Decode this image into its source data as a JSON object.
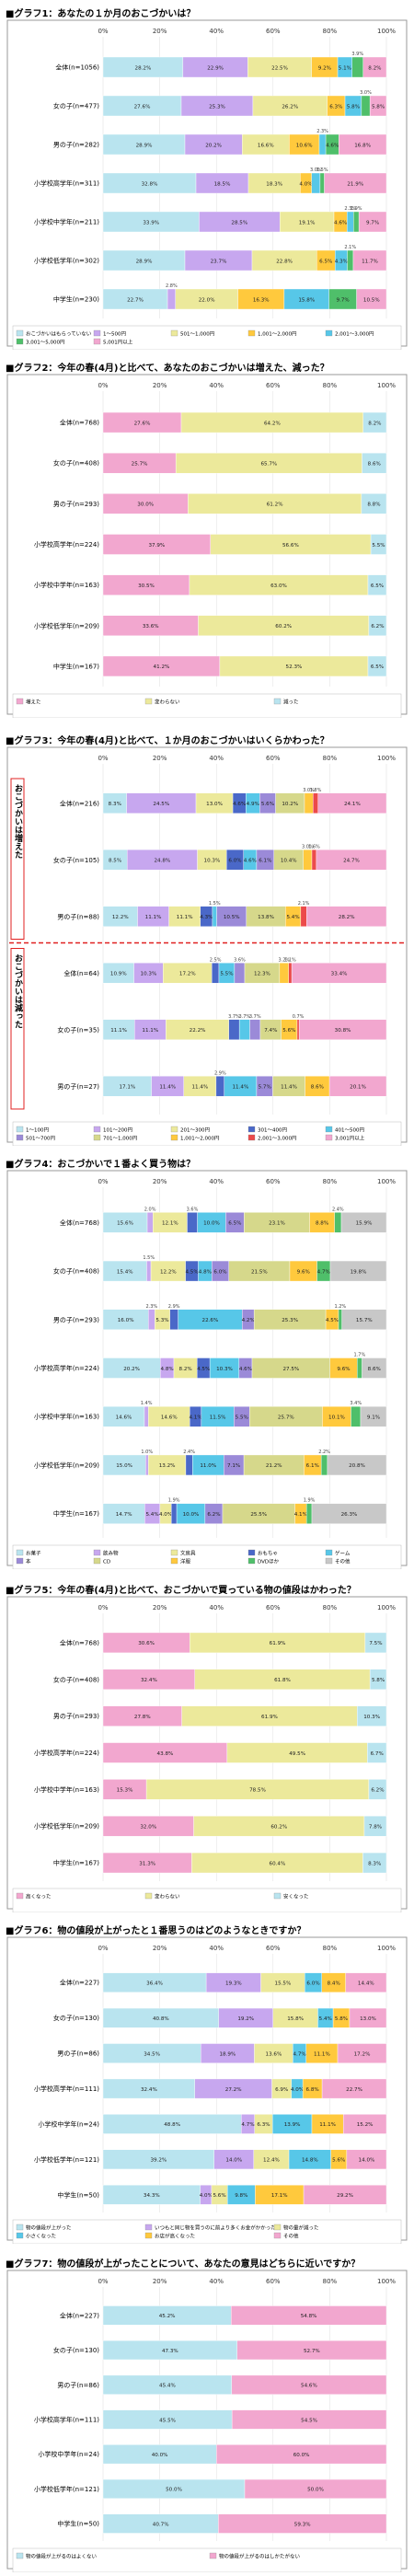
{
  "chart_data": [
    {
      "type": "bar",
      "stacked": "percent",
      "title": "■グラフ1：あなたの１か月のおこづかいは？",
      "categories": [
        "全体(n=1056)",
        "女の子(n=477)",
        "男の子(n=282)",
        "小学校高学年(n=311)",
        "小学校中学年(n=211)",
        "小学校低学年(n=302)",
        "中学生(n=230)"
      ],
      "axis_ticks": [
        "0%",
        "20%",
        "40%",
        "60%",
        "80%",
        "100%"
      ],
      "series": [
        {
          "name": "おこづかいはもらっていない",
          "color": "#b9e4ef",
          "values": [
            28.2,
            27.6,
            28.9,
            32.8,
            33.9,
            28.9,
            22.7
          ]
        },
        {
          "name": "1〜500円",
          "color": "#c7a7ef",
          "values": [
            22.9,
            25.3,
            20.2,
            18.5,
            28.5,
            23.7,
            2.8
          ]
        },
        {
          "name": "501〜1,000円",
          "color": "#ece99b",
          "values": [
            22.5,
            26.2,
            16.6,
            18.3,
            19.1,
            22.8,
            22.0
          ]
        },
        {
          "name": "1,001〜2,000円",
          "color": "#ffc93d",
          "values": [
            9.2,
            6.3,
            10.6,
            4.0,
            4.6,
            6.5,
            16.3
          ]
        },
        {
          "name": "2,001〜3,000円",
          "color": "#57c7e8",
          "values": [
            5.1,
            5.8,
            2.3,
            3.0,
            2.3,
            4.3,
            15.8
          ]
        },
        {
          "name": "3,001〜5,000円",
          "color": "#4fbf6a",
          "values": [
            3.9,
            3.0,
            4.6,
            1.5,
            1.9,
            2.1,
            9.7
          ]
        },
        {
          "name": "5,001円以上",
          "color": "#f2a7cf",
          "values": [
            8.2,
            5.8,
            16.8,
            21.9,
            9.7,
            11.7,
            10.5
          ]
        }
      ]
    },
    {
      "type": "bar",
      "stacked": "percent",
      "title": "■グラフ2：今年の春(4月)と比べて、あなたのおこづかいは増えた、減った？",
      "categories": [
        "全体(n=768)",
        "女の子(n=408)",
        "男の子(n=293)",
        "小学校高学年(n=224)",
        "小学校中学年(n=163)",
        "小学校低学年(n=209)",
        "中学生(n=167)"
      ],
      "axis_ticks": [
        "0%",
        "20%",
        "40%",
        "60%",
        "80%",
        "100%"
      ],
      "series": [
        {
          "name": "増えた",
          "color": "#f2a7cf",
          "values": [
            27.6,
            25.7,
            30.0,
            37.9,
            30.5,
            33.6,
            41.2
          ]
        },
        {
          "name": "変わらない",
          "color": "#ece99b",
          "values": [
            64.2,
            65.7,
            61.2,
            56.6,
            63.0,
            60.2,
            52.3
          ]
        },
        {
          "name": "減った",
          "color": "#b9e4ef",
          "values": [
            8.2,
            8.6,
            8.8,
            5.5,
            6.5,
            6.2,
            6.5
          ]
        }
      ]
    },
    {
      "type": "bar",
      "stacked": "percent",
      "title": "■グラフ3：今年の春(4月)と比べて、１か月のおこづかいはいくらかわった？",
      "categories": [
        "全体(n=216)",
        "女の子(n=105)",
        "男の子(n=88)",
        "全体(n=64)",
        "女の子(n=35)",
        "男の子(n=27)"
      ],
      "group_labels": [
        "おこづかいは増えた",
        "おこづかいは減った"
      ],
      "axis_ticks": [
        "0%",
        "20%",
        "40%",
        "60%",
        "80%",
        "100%"
      ],
      "series": [
        {
          "name": "1〜100円",
          "color": "#b9e4ef",
          "values": [
            8.3,
            8.5,
            12.2,
            10.9,
            11.1,
            17.1
          ]
        },
        {
          "name": "101〜200円",
          "color": "#c7a7ef",
          "values": [
            24.5,
            24.8,
            11.1,
            10.3,
            11.1,
            11.4
          ]
        },
        {
          "name": "201〜300円",
          "color": "#ece99b",
          "values": [
            13.0,
            10.3,
            11.1,
            17.2,
            22.2,
            11.4
          ]
        },
        {
          "name": "301〜400円",
          "color": "#4a68c8",
          "values": [
            4.6,
            6.0,
            4.3,
            2.5,
            3.7,
            2.9
          ]
        },
        {
          "name": "401〜500円",
          "color": "#57c7e8",
          "values": [
            4.9,
            4.6,
            1.5,
            5.5,
            3.7,
            11.4
          ]
        },
        {
          "name": "501〜700円",
          "color": "#9b8ad8",
          "values": [
            5.6,
            6.1,
            10.5,
            3.6,
            3.7,
            5.7
          ]
        },
        {
          "name": "701〜1,000円",
          "color": "#d6d88b",
          "values": [
            10.2,
            10.4,
            13.8,
            12.3,
            7.4,
            11.4
          ]
        },
        {
          "name": "1,001〜2,000円",
          "color": "#ffc93d",
          "values": [
            3.0,
            3.0,
            5.4,
            3.2,
            5.6,
            8.6
          ]
        },
        {
          "name": "2,001〜3,000円",
          "color": "#ec4a4a",
          "values": [
            1.8,
            1.6,
            2.1,
            1.1,
            0.7,
            0.0
          ]
        },
        {
          "name": "3,001円以上",
          "color": "#f2a7cf",
          "values": [
            24.1,
            24.7,
            28.2,
            33.4,
            30.8,
            20.1
          ]
        }
      ]
    },
    {
      "type": "bar",
      "stacked": "percent",
      "title": "■グラフ4：おこづかいで１番よく買う物は？",
      "categories": [
        "全体(n=768)",
        "女の子(n=408)",
        "男の子(n=293)",
        "小学校高学年(n=224)",
        "小学校中学年(n=163)",
        "小学校低学年(n=209)",
        "中学生(n=167)"
      ],
      "axis_ticks": [
        "0%",
        "20%",
        "40%",
        "60%",
        "80%",
        "100%"
      ],
      "series": [
        {
          "name": "お菓子",
          "color": "#b9e4ef",
          "values": [
            15.6,
            15.4,
            16.0,
            20.2,
            14.6,
            15.0,
            14.7
          ]
        },
        {
          "name": "飲み物",
          "color": "#c7a7ef",
          "values": [
            2.0,
            1.5,
            2.3,
            4.8,
            1.4,
            1.0,
            5.4
          ]
        },
        {
          "name": "文房具",
          "color": "#ece99b",
          "values": [
            12.1,
            12.2,
            5.3,
            8.2,
            14.6,
            13.2,
            4.0
          ]
        },
        {
          "name": "おもちゃ",
          "color": "#4a68c8",
          "values": [
            3.6,
            4.5,
            2.9,
            4.5,
            4.1,
            2.4,
            1.9
          ]
        },
        {
          "name": "ゲーム",
          "color": "#57c7e8",
          "values": [
            10.0,
            4.8,
            22.6,
            10.3,
            11.5,
            11.0,
            10.0
          ]
        },
        {
          "name": "本",
          "color": "#9b8ad8",
          "values": [
            6.5,
            6.0,
            4.2,
            4.6,
            5.5,
            7.1,
            6.2
          ]
        },
        {
          "name": "CD",
          "color": "#d6d88b",
          "values": [
            23.1,
            21.5,
            25.3,
            27.5,
            25.7,
            21.2,
            25.5
          ]
        },
        {
          "name": "洋服",
          "color": "#ffc93d",
          "values": [
            8.8,
            9.6,
            4.5,
            9.6,
            10.1,
            6.1,
            4.1
          ]
        },
        {
          "name": "DVDほか",
          "color": "#4fbf6a",
          "values": [
            2.4,
            4.7,
            1.2,
            1.7,
            3.4,
            2.2,
            1.9
          ]
        },
        {
          "name": "その他",
          "color": "#c8c8c8",
          "values": [
            15.9,
            19.8,
            15.7,
            8.6,
            9.1,
            20.8,
            26.3
          ]
        }
      ]
    },
    {
      "type": "bar",
      "stacked": "percent",
      "title": "■グラフ5：今年の春(4月)と比べて、おこづかいで買っている物の値段はかわった？",
      "categories": [
        "全体(n=768)",
        "女の子(n=408)",
        "男の子(n=293)",
        "小学校高学年(n=224)",
        "小学校中学年(n=163)",
        "小学校低学年(n=209)",
        "中学生(n=167)"
      ],
      "axis_ticks": [
        "0%",
        "20%",
        "40%",
        "60%",
        "80%",
        "100%"
      ],
      "series": [
        {
          "name": "高くなった",
          "color": "#f2a7cf",
          "values": [
            30.6,
            32.4,
            27.8,
            43.8,
            15.3,
            32.0,
            31.3
          ]
        },
        {
          "name": "変わらない",
          "color": "#ece99b",
          "values": [
            61.9,
            61.8,
            61.9,
            49.5,
            78.5,
            60.2,
            60.4
          ]
        },
        {
          "name": "安くなった",
          "color": "#b9e4ef",
          "values": [
            7.5,
            5.8,
            10.3,
            6.7,
            6.2,
            7.8,
            8.3
          ]
        }
      ]
    },
    {
      "type": "bar",
      "stacked": "percent",
      "title": "■グラフ6：物の値段が上がったと１番思うのはどのようなときですか？",
      "categories": [
        "全体(n=227)",
        "女の子(n=130)",
        "男の子(n=86)",
        "小学校高学年(n=111)",
        "小学校中学年(n=24)",
        "小学校低学年(n=121)",
        "中学生(n=50)"
      ],
      "axis_ticks": [
        "0%",
        "20%",
        "40%",
        "60%",
        "80%",
        "100%"
      ],
      "series": [
        {
          "name": "物の値段が上がった",
          "color": "#b9e4ef",
          "values": [
            36.4,
            40.8,
            34.5,
            32.4,
            48.8,
            39.2,
            34.3
          ]
        },
        {
          "name": "いつもと同じ物を買うのに前より多くお金がかかった",
          "color": "#c7a7ef",
          "values": [
            19.3,
            19.2,
            18.9,
            27.2,
            4.7,
            14.0,
            4.0
          ]
        },
        {
          "name": "物の量が減った",
          "color": "#ece99b",
          "values": [
            15.5,
            15.8,
            13.6,
            6.9,
            6.3,
            12.4,
            5.6
          ]
        },
        {
          "name": "小さくなった",
          "color": "#57c7e8",
          "values": [
            6.0,
            5.4,
            4.7,
            4.0,
            13.9,
            14.8,
            9.8
          ]
        },
        {
          "name": "お店が高くなった",
          "color": "#ffc93d",
          "values": [
            8.4,
            5.8,
            11.1,
            6.8,
            11.1,
            5.6,
            17.1
          ]
        },
        {
          "name": "その他",
          "color": "#f2a7cf",
          "values": [
            14.4,
            13.0,
            17.2,
            22.7,
            15.2,
            14.0,
            29.2
          ]
        }
      ]
    },
    {
      "type": "bar",
      "stacked": "percent",
      "title": "■グラフ7：物の値段が上がったことについて、あなたの意見はどちらに近いですか？",
      "categories": [
        "全体(n=227)",
        "女の子(n=130)",
        "男の子(n=86)",
        "小学校高学年(n=111)",
        "小学校中学年(n=24)",
        "小学校低学年(n=121)",
        "中学生(n=50)"
      ],
      "axis_ticks": [
        "0%",
        "20%",
        "40%",
        "60%",
        "80%",
        "100%"
      ],
      "series": [
        {
          "name": "物の値段が上がるのはよくない",
          "color": "#b9e4ef",
          "values": [
            45.2,
            47.3,
            45.4,
            45.5,
            40.0,
            50.0,
            40.7
          ]
        },
        {
          "name": "物の値段が上がるのはしかたがない",
          "color": "#f2a7cf",
          "values": [
            54.8,
            52.7,
            54.6,
            54.5,
            60.0,
            50.0,
            59.3
          ]
        }
      ]
    }
  ]
}
